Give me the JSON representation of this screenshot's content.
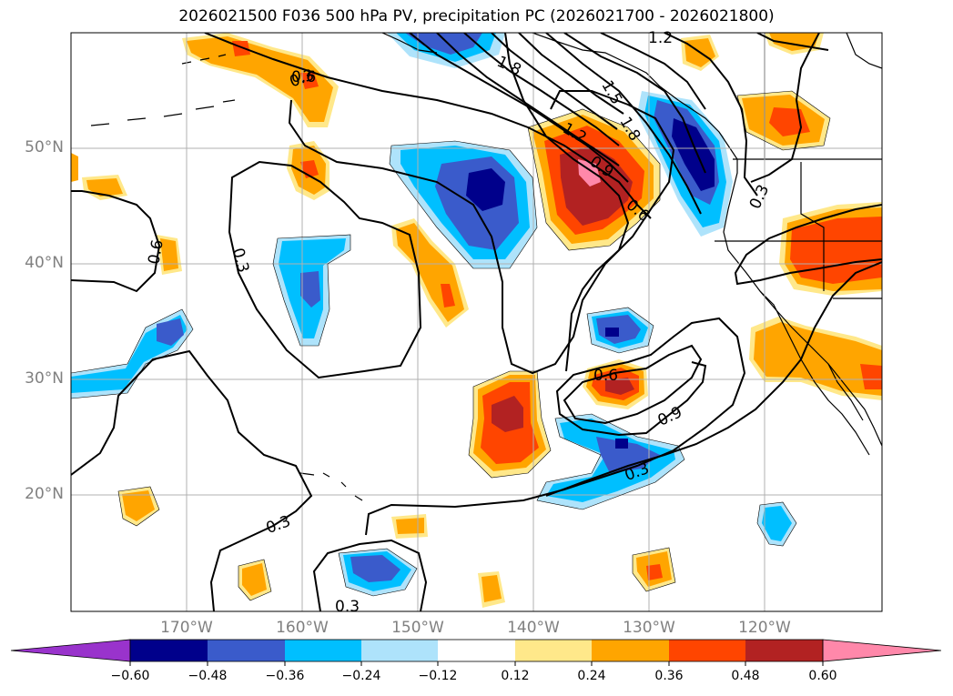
{
  "title": "2026021500 F036 500 hPa PV, precipitation PC (2026021700 - 2026021800)",
  "lat_labels": [
    "50°N",
    "40°N",
    "30°N",
    "20°N"
  ],
  "lon_labels": [
    "170°W",
    "160°W",
    "150°W",
    "140°W",
    "130°W",
    "120°W"
  ],
  "contour_labels": [
    "1.2",
    "1.8",
    "0.3",
    "0.6",
    "1.2",
    "0.9",
    "0.6",
    "1.5",
    "1.8",
    "0.6",
    "0.3",
    "0.6",
    "0.9",
    "0.3",
    "0.3",
    "0.3"
  ],
  "colorbar": {
    "ticks": [
      "−0.60",
      "−0.48",
      "−0.36",
      "−0.24",
      "−0.12",
      "0.12",
      "0.24",
      "0.36",
      "0.48",
      "0.60"
    ],
    "colors": [
      "#9933cc",
      "#00008b",
      "#3a5bcb",
      "#00bfff",
      "#aee3fb",
      "#ffffff",
      "#ffe88a",
      "#ffa500",
      "#ff4500",
      "#b22222",
      "#ff88aa"
    ]
  },
  "fill_colors": {
    "lightblue": "#aee3fb",
    "cyan": "#00bfff",
    "royal": "#3a5bcb",
    "navy": "#00008b",
    "yellow": "#ffe88a",
    "orange": "#ffa500",
    "redorange": "#ff4500",
    "firebrick": "#b22222",
    "pink": "#ff88aa"
  }
}
